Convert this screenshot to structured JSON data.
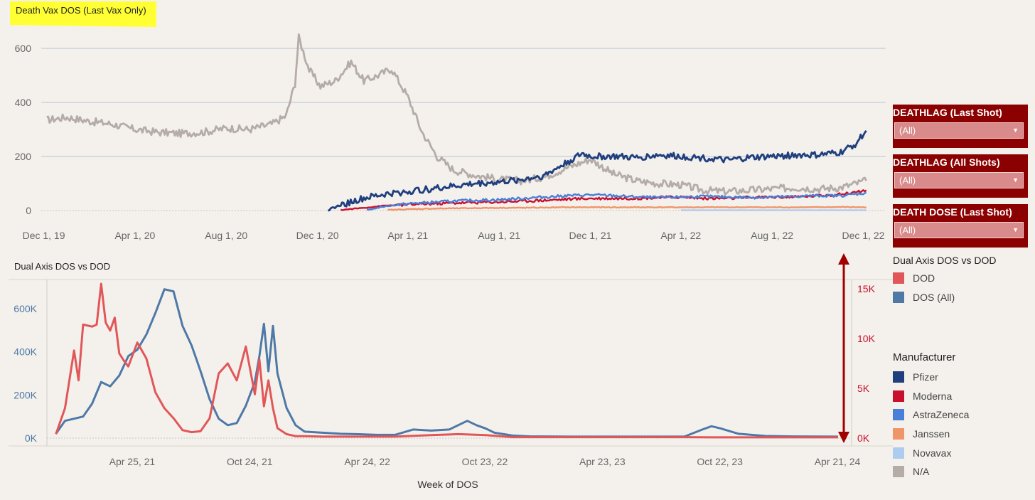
{
  "chart_data": [
    {
      "type": "line",
      "title": "Death Vax DOS (Last Vax Only)",
      "xlabel": "",
      "ylabel": "",
      "x_ticks": [
        "Dec 1, 19",
        "Apr 1, 20",
        "Aug 1, 20",
        "Dec 1, 20",
        "Apr 1, 21",
        "Aug 1, 21",
        "Dec 1, 21",
        "Apr 1, 22",
        "Aug 1, 22",
        "Dec 1, 22"
      ],
      "y_ticks": [
        "600",
        "400",
        "200",
        "0"
      ],
      "ylim": [
        0,
        640
      ],
      "xlim": [
        "2019-11-01",
        "2022-12-31"
      ],
      "grid": "horizontal",
      "series": [
        {
          "name": "N/A",
          "color": "#b5aca8",
          "x": [
            "2019-12-05",
            "2020-01-01",
            "2020-02-01",
            "2020-03-01",
            "2020-04-01",
            "2020-05-01",
            "2020-06-01",
            "2020-07-01",
            "2020-08-01",
            "2020-09-01",
            "2020-10-01",
            "2020-10-20",
            "2020-11-01",
            "2020-11-06",
            "2020-11-20",
            "2020-12-05",
            "2020-12-25",
            "2021-01-15",
            "2021-02-01",
            "2021-02-20",
            "2021-03-10",
            "2021-04-01",
            "2021-04-20",
            "2021-05-10",
            "2021-06-01",
            "2021-07-01",
            "2021-08-01",
            "2021-09-01",
            "2021-10-01",
            "2021-11-01",
            "2021-12-01",
            "2022-01-01",
            "2022-02-01",
            "2022-03-01",
            "2022-04-01",
            "2022-05-01",
            "2022-06-01",
            "2022-07-01",
            "2022-08-01",
            "2022-09-01",
            "2022-10-01",
            "2022-11-01",
            "2022-12-05"
          ],
          "values": [
            335,
            345,
            330,
            320,
            300,
            290,
            285,
            290,
            305,
            300,
            320,
            350,
            470,
            640,
            520,
            460,
            480,
            550,
            480,
            500,
            525,
            420,
            290,
            200,
            150,
            130,
            115,
            110,
            125,
            160,
            190,
            135,
            110,
            100,
            95,
            75,
            70,
            75,
            80,
            85,
            80,
            85,
            110
          ]
        },
        {
          "name": "Pfizer",
          "color": "#1f3f7f",
          "x": [
            "2020-12-15",
            "2021-01-01",
            "2021-02-01",
            "2021-03-01",
            "2021-04-01",
            "2021-05-01",
            "2021-06-01",
            "2021-07-01",
            "2021-08-01",
            "2021-09-01",
            "2021-10-01",
            "2021-11-01",
            "2021-11-20",
            "2021-12-01",
            "2022-01-01",
            "2022-02-01",
            "2022-03-01",
            "2022-04-01",
            "2022-05-01",
            "2022-06-01",
            "2022-07-01",
            "2022-08-01",
            "2022-09-01",
            "2022-10-01",
            "2022-11-01",
            "2022-11-20",
            "2022-12-05"
          ],
          "values": [
            2,
            20,
            45,
            60,
            70,
            80,
            90,
            100,
            105,
            115,
            130,
            180,
            210,
            200,
            200,
            195,
            205,
            200,
            195,
            185,
            195,
            200,
            205,
            205,
            215,
            245,
            295
          ]
        },
        {
          "name": "Moderna",
          "color": "#c8102e",
          "x": [
            "2021-01-01",
            "2021-02-01",
            "2021-03-01",
            "2021-04-01",
            "2021-05-01",
            "2021-06-01",
            "2021-07-01",
            "2021-08-01",
            "2021-09-01",
            "2021-10-01",
            "2021-11-01",
            "2021-12-01",
            "2022-01-01",
            "2022-02-01",
            "2022-03-01",
            "2022-04-01",
            "2022-05-01",
            "2022-06-01",
            "2022-07-01",
            "2022-08-01",
            "2022-09-01",
            "2022-10-01",
            "2022-11-01",
            "2022-12-05"
          ],
          "values": [
            2,
            10,
            18,
            22,
            25,
            28,
            30,
            32,
            35,
            38,
            42,
            45,
            45,
            45,
            48,
            50,
            45,
            45,
            48,
            50,
            50,
            55,
            60,
            75
          ]
        },
        {
          "name": "AstraZeneca",
          "color": "#4a7fd8",
          "x": [
            "2021-02-05",
            "2021-03-01",
            "2021-04-01",
            "2021-05-01",
            "2021-06-01",
            "2021-07-01",
            "2021-08-01",
            "2021-09-01",
            "2021-10-01",
            "2021-11-01",
            "2021-12-01",
            "2022-01-01",
            "2022-02-01",
            "2022-03-01",
            "2022-04-01",
            "2022-05-01",
            "2022-06-01",
            "2022-07-01",
            "2022-08-01",
            "2022-09-01",
            "2022-10-01",
            "2022-11-01",
            "2022-12-05"
          ],
          "values": [
            2,
            15,
            25,
            30,
            35,
            38,
            40,
            45,
            50,
            55,
            58,
            55,
            50,
            48,
            50,
            52,
            50,
            48,
            50,
            52,
            55,
            55,
            65
          ]
        },
        {
          "name": "Janssen",
          "color": "#f0956a",
          "x": [
            "2021-03-05",
            "2021-04-01",
            "2021-05-01",
            "2021-06-01",
            "2021-07-01",
            "2021-08-01",
            "2021-09-01",
            "2021-10-01",
            "2021-11-01",
            "2021-12-01",
            "2022-01-01",
            "2022-02-01",
            "2022-03-01",
            "2022-04-01",
            "2022-05-01",
            "2022-06-01",
            "2022-07-01",
            "2022-08-01",
            "2022-09-01",
            "2022-10-01",
            "2022-11-01",
            "2022-12-05"
          ],
          "values": [
            2,
            5,
            7,
            8,
            9,
            10,
            10,
            11,
            12,
            12,
            12,
            12,
            12,
            12,
            12,
            12,
            12,
            12,
            12,
            12,
            13,
            12
          ]
        },
        {
          "name": "Novavax",
          "color": "#aecbf0",
          "x": [
            "2022-04-01",
            "2022-06-01",
            "2022-08-01",
            "2022-10-01",
            "2022-12-05"
          ],
          "values": [
            1,
            1,
            1,
            1,
            1
          ]
        }
      ]
    },
    {
      "type": "line",
      "title": "Dual Axis DOS vs DOD",
      "xlabel": "Week of DOS",
      "x_ticks": [
        "Apr 25, 21",
        "Oct 24, 21",
        "Apr 24, 22",
        "Oct 23, 22",
        "Apr 23, 23",
        "Oct 22, 23",
        "Apr 21, 24"
      ],
      "y_left_ticks": [
        "600K",
        "400K",
        "200K",
        "0K"
      ],
      "y_right_ticks": [
        "15K",
        "10K",
        "5K",
        "0K"
      ],
      "ylim_left": [
        0,
        720000
      ],
      "ylim_right": [
        0,
        16000
      ],
      "xlim": [
        "2020-12-14",
        "2024-05-13"
      ],
      "series": [
        {
          "name": "DOS (All)",
          "axis": "left",
          "color": "#4e79a7",
          "x": [
            "2020-12-28",
            "2021-01-11",
            "2021-01-25",
            "2021-02-08",
            "2021-02-22",
            "2021-03-08",
            "2021-03-22",
            "2021-04-05",
            "2021-04-19",
            "2021-05-03",
            "2021-05-17",
            "2021-05-31",
            "2021-06-14",
            "2021-06-28",
            "2021-07-12",
            "2021-07-26",
            "2021-08-09",
            "2021-08-23",
            "2021-09-06",
            "2021-09-20",
            "2021-10-04",
            "2021-10-18",
            "2021-11-01",
            "2021-11-08",
            "2021-11-15",
            "2021-11-22",
            "2021-11-29",
            "2021-12-06",
            "2021-12-20",
            "2022-01-03",
            "2022-01-17",
            "2022-02-14",
            "2022-03-14",
            "2022-04-11",
            "2022-05-09",
            "2022-06-06",
            "2022-07-04",
            "2022-08-01",
            "2022-08-29",
            "2022-09-26",
            "2022-10-10",
            "2022-10-24",
            "2022-11-07",
            "2022-12-05",
            "2023-01-02",
            "2023-03-06",
            "2023-06-05",
            "2023-08-28",
            "2023-09-25",
            "2023-10-09",
            "2023-10-23",
            "2023-11-20",
            "2024-01-01",
            "2024-02-12",
            "2024-04-22"
          ],
          "values": [
            20000,
            80000,
            90000,
            100000,
            160000,
            260000,
            240000,
            290000,
            380000,
            410000,
            480000,
            580000,
            690000,
            680000,
            520000,
            430000,
            310000,
            180000,
            90000,
            60000,
            70000,
            150000,
            260000,
            380000,
            530000,
            310000,
            520000,
            300000,
            140000,
            60000,
            30000,
            25000,
            20000,
            18000,
            15000,
            15000,
            40000,
            35000,
            40000,
            80000,
            60000,
            45000,
            25000,
            12000,
            8000,
            7000,
            7000,
            7000,
            40000,
            55000,
            45000,
            20000,
            10000,
            8000,
            7000
          ]
        },
        {
          "name": "DOD",
          "axis": "right",
          "color": "#e15759",
          "x": [
            "2020-12-28",
            "2021-01-11",
            "2021-01-25",
            "2021-02-01",
            "2021-02-08",
            "2021-02-22",
            "2021-03-01",
            "2021-03-08",
            "2021-03-15",
            "2021-03-22",
            "2021-03-29",
            "2021-04-05",
            "2021-04-12",
            "2021-04-19",
            "2021-05-03",
            "2021-05-17",
            "2021-05-31",
            "2021-06-14",
            "2021-06-28",
            "2021-07-12",
            "2021-07-26",
            "2021-08-09",
            "2021-08-23",
            "2021-09-06",
            "2021-09-20",
            "2021-10-04",
            "2021-10-18",
            "2021-11-01",
            "2021-11-08",
            "2021-11-15",
            "2021-11-22",
            "2021-11-29",
            "2021-12-06",
            "2021-12-20",
            "2022-01-03",
            "2022-01-17",
            "2022-02-14",
            "2022-04-11",
            "2022-06-06",
            "2022-08-01",
            "2022-09-12",
            "2022-10-24",
            "2022-12-05",
            "2023-04-03",
            "2023-08-28",
            "2023-10-09",
            "2023-12-04",
            "2024-04-22"
          ],
          "values": [
            400,
            3000,
            8800,
            5800,
            11400,
            11200,
            11400,
            15500,
            11600,
            10800,
            12100,
            8500,
            7800,
            7200,
            9600,
            8000,
            4600,
            3000,
            2000,
            800,
            600,
            700,
            2000,
            6500,
            7500,
            5800,
            9200,
            4400,
            7900,
            3200,
            5800,
            3000,
            1000,
            400,
            200,
            200,
            150,
            150,
            150,
            300,
            400,
            300,
            100,
            100,
            100,
            80,
            80,
            80
          ]
        }
      ],
      "legend_title": "Dual Axis DOS vs DOD"
    }
  ],
  "filters": [
    {
      "title": "DEATHLAG (Last Shot)",
      "value": "(All)"
    },
    {
      "title": "DEATHLAG (All Shots)",
      "value": "(All)"
    },
    {
      "title": "DEATH DOSE (Last Shot)",
      "value": "(All)"
    }
  ],
  "legend_dual": {
    "title": "Dual Axis DOS vs DOD",
    "items": [
      {
        "label": "DOD",
        "color": "#e15759"
      },
      {
        "label": "DOS (All)",
        "color": "#4e79a7"
      }
    ]
  },
  "legend_manufacturer": {
    "title": "Manufacturer",
    "items": [
      {
        "label": "Pfizer",
        "color": "#1f3f7f"
      },
      {
        "label": "Moderna",
        "color": "#c8102e"
      },
      {
        "label": "AstraZeneca",
        "color": "#4a7fd8"
      },
      {
        "label": "Janssen",
        "color": "#f0956a"
      },
      {
        "label": "Novavax",
        "color": "#aecbf0"
      },
      {
        "label": "N/A",
        "color": "#b5aca8"
      }
    ]
  },
  "annotation_arrow_color": "#a00000"
}
